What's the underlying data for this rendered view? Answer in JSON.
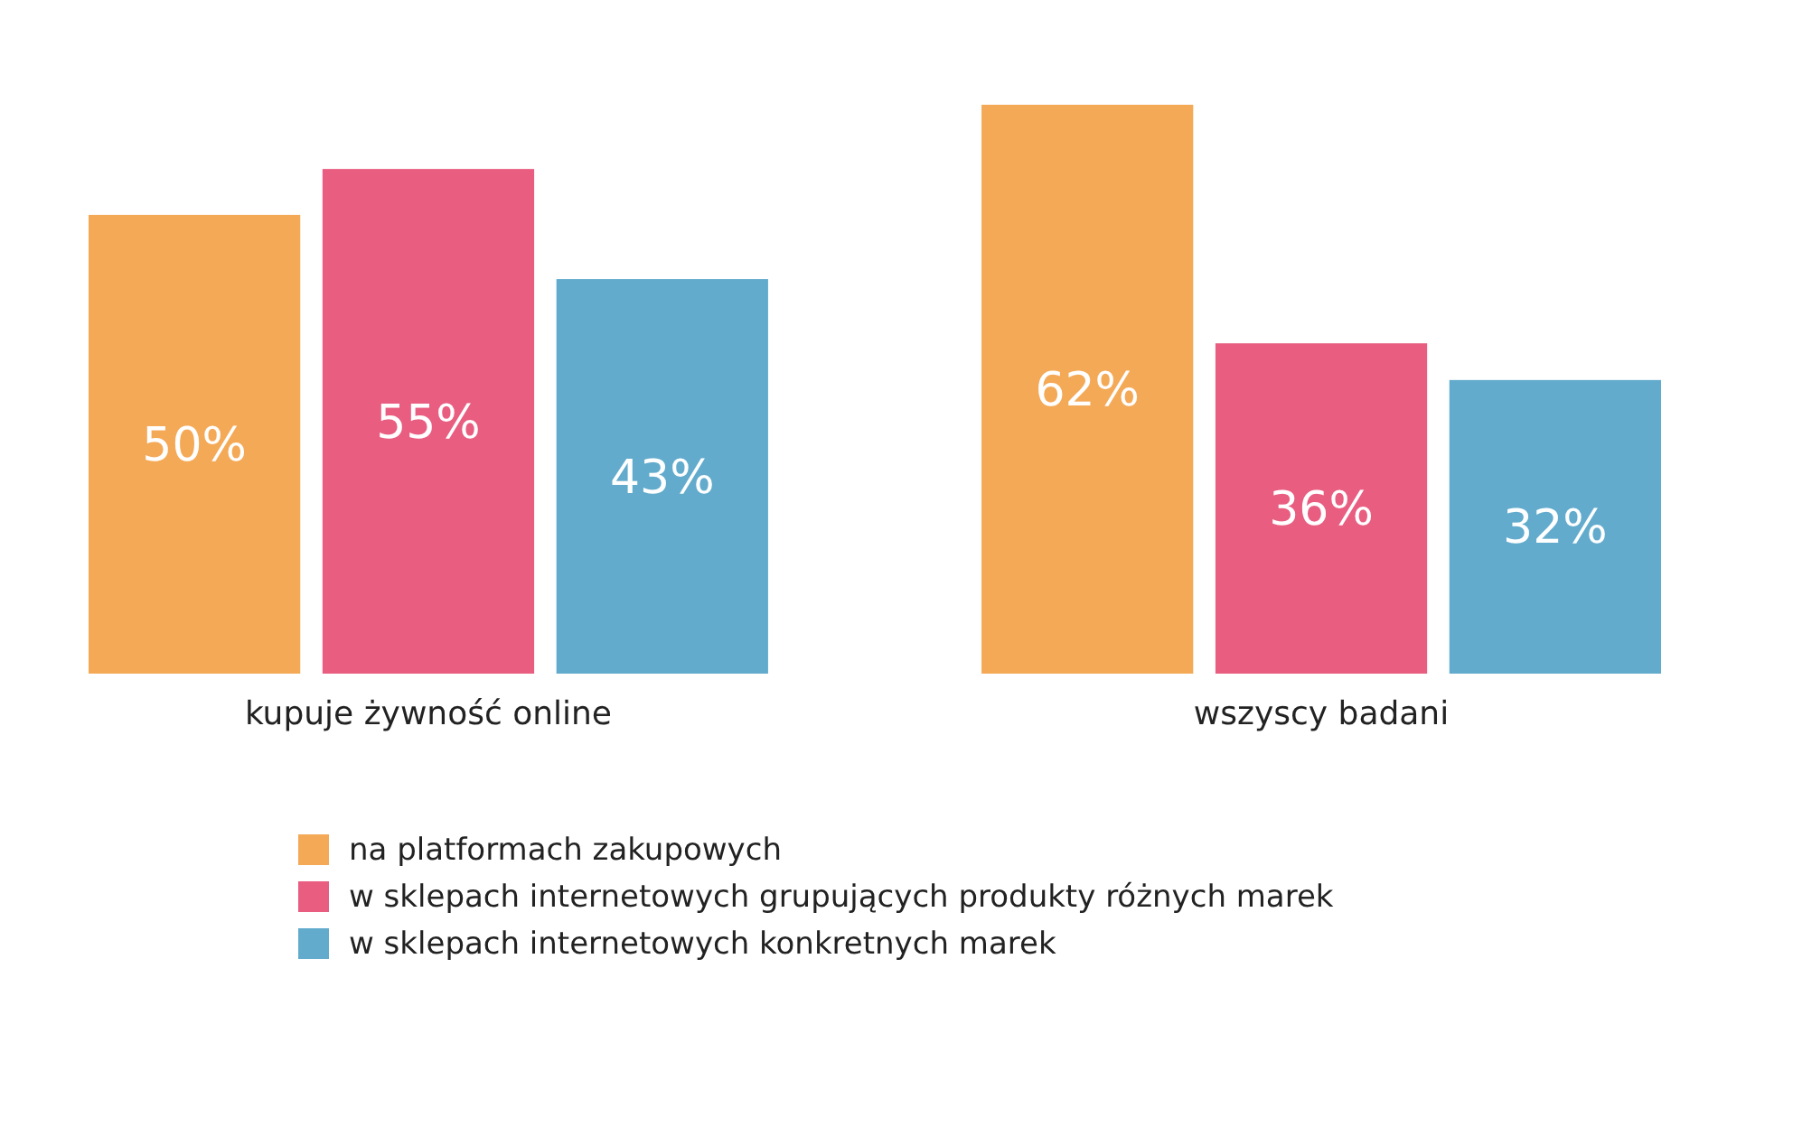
{
  "chart_data": {
    "type": "bar",
    "categories": [
      "kupuje żywność online",
      "wszyscy badani"
    ],
    "series": [
      {
        "name": "na platformach zakupowych",
        "color": "#f4a957",
        "values": [
          50,
          62
        ],
        "value_labels": [
          "50%",
          "62%"
        ]
      },
      {
        "name": "w sklepach internetowych grupujących produkty różnych marek",
        "color": "#e85d80",
        "values": [
          55,
          36
        ],
        "value_labels": [
          "55%",
          "36%"
        ]
      },
      {
        "name": "w sklepach internetowych konkretnych marek",
        "color": "#62abcd",
        "values": [
          43,
          32
        ],
        "value_labels": [
          "43%",
          "32%"
        ]
      }
    ],
    "relative": false,
    "legend": "bottom"
  }
}
